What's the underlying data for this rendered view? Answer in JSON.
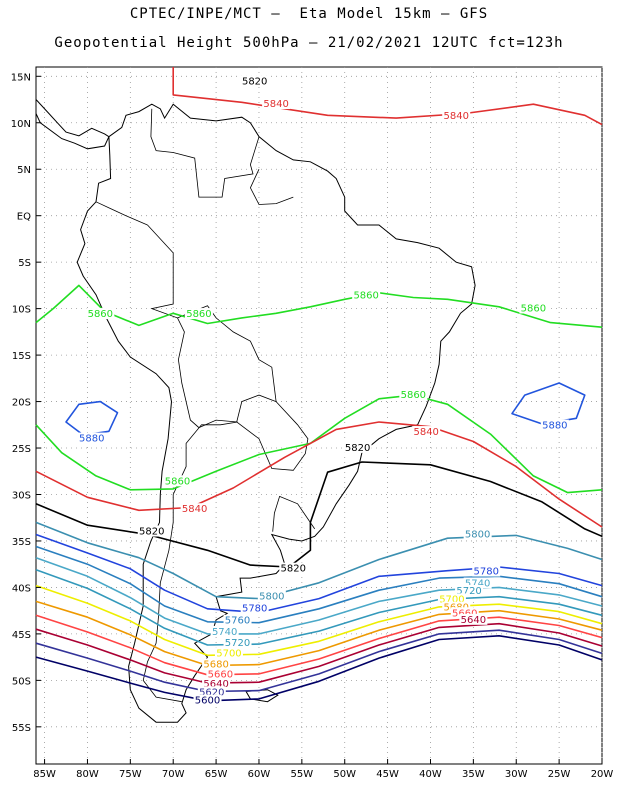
{
  "title_line1": "CPTEC/INPE/MCT –  Eta Model 15km – GFS",
  "title_line2": "Geopotential Height 500hPa – 21/02/2021 12UTC fct=123h",
  "lat_labels": [
    "15N",
    "10N",
    "5N",
    "EQ",
    "5S",
    "10S",
    "15S",
    "20S",
    "25S",
    "30S",
    "35S",
    "40S",
    "45S",
    "50S",
    "55S"
  ],
  "lon_labels": [
    "85W",
    "80W",
    "75W",
    "70W",
    "65W",
    "60W",
    "55W",
    "50W",
    "45W",
    "40W",
    "35W",
    "30W",
    "25W",
    "20W"
  ],
  "map_extent": {
    "lon_min": -86,
    "lon_max": -20,
    "lat_min": -59,
    "lat_max": 16
  },
  "contour_colors": {
    "5820": "#000000",
    "5840": "#e03030",
    "5860": "#22dd22",
    "5880": "#2255dd",
    "5800": "#3b8fb0",
    "5780": "#2244dd",
    "5760": "#2a7fbf",
    "5740": "#4aa8c8",
    "5720": "#3399bb",
    "5700": "#eeee00",
    "5680": "#ee9900",
    "5660": "#ff4444",
    "5640": "#aa0033",
    "5620": "#333399",
    "5600": "#000066"
  },
  "contour_labels": [
    {
      "text": "5820",
      "color": "#000000",
      "lon": -60.5,
      "lat": 14.2
    },
    {
      "text": "5840",
      "color": "#e03030",
      "lon": -37.0,
      "lat": 10.5
    },
    {
      "text": "5840",
      "color": "#e03030",
      "lon": -58.0,
      "lat": 11.8
    },
    {
      "text": "5860",
      "color": "#22dd22",
      "lon": -78.5,
      "lat": -10.8
    },
    {
      "text": "5860",
      "color": "#22dd22",
      "lon": -67.0,
      "lat": -10.8
    },
    {
      "text": "5860",
      "color": "#22dd22",
      "lon": -47.5,
      "lat": -8.8
    },
    {
      "text": "5860",
      "color": "#22dd22",
      "lon": -28.0,
      "lat": -10.2
    },
    {
      "text": "5860",
      "color": "#22dd22",
      "lon": -42.0,
      "lat": -19.5
    },
    {
      "text": "5880",
      "color": "#2255dd",
      "lon": -79.5,
      "lat": -24.2
    },
    {
      "text": "5880",
      "color": "#2255dd",
      "lon": -25.5,
      "lat": -22.8
    },
    {
      "text": "5840",
      "color": "#e03030",
      "lon": -40.5,
      "lat": -23.5
    },
    {
      "text": "5820",
      "color": "#000000",
      "lon": -48.5,
      "lat": -25.2
    },
    {
      "text": "5860",
      "color": "#22dd22",
      "lon": -69.5,
      "lat": -28.8
    },
    {
      "text": "5840",
      "color": "#e03030",
      "lon": -67.5,
      "lat": -31.8
    },
    {
      "text": "5820",
      "color": "#000000",
      "lon": -72.5,
      "lat": -34.2
    },
    {
      "text": "5820",
      "color": "#000000",
      "lon": -56.0,
      "lat": -38.2
    },
    {
      "text": "5800",
      "color": "#3b8fb0",
      "lon": -34.5,
      "lat": -34.5
    },
    {
      "text": "5800",
      "color": "#3b8fb0",
      "lon": -58.5,
      "lat": -41.2
    },
    {
      "text": "5780",
      "color": "#2244dd",
      "lon": -60.5,
      "lat": -42.5
    },
    {
      "text": "5780",
      "color": "#2244dd",
      "lon": -33.5,
      "lat": -38.5
    },
    {
      "text": "5760",
      "color": "#2a7fbf",
      "lon": -62.5,
      "lat": -43.8
    },
    {
      "text": "5740",
      "color": "#4aa8c8",
      "lon": -64.0,
      "lat": -45.0
    },
    {
      "text": "5720",
      "color": "#3399bb",
      "lon": -62.5,
      "lat": -46.2
    },
    {
      "text": "5700",
      "color": "#eeee00",
      "lon": -63.5,
      "lat": -47.3
    },
    {
      "text": "5680",
      "color": "#ee9900",
      "lon": -65.0,
      "lat": -48.5
    },
    {
      "text": "5660",
      "color": "#ff4444",
      "lon": -64.5,
      "lat": -49.6
    },
    {
      "text": "5640",
      "color": "#aa0033",
      "lon": -65.0,
      "lat": -50.6
    },
    {
      "text": "5620",
      "color": "#333399",
      "lon": -65.5,
      "lat": -51.5
    },
    {
      "text": "5600",
      "color": "#000066",
      "lon": -66.0,
      "lat": -52.4
    },
    {
      "text": "5740",
      "color": "#4aa8c8",
      "lon": -34.5,
      "lat": -39.8
    },
    {
      "text": "5720",
      "color": "#3399bb",
      "lon": -35.5,
      "lat": -40.6
    },
    {
      "text": "5700",
      "color": "#eeee00",
      "lon": -37.5,
      "lat": -41.5
    },
    {
      "text": "5680",
      "color": "#ee9900",
      "lon": -37.0,
      "lat": -42.4
    },
    {
      "text": "5660",
      "color": "#ff4444",
      "lon": -36.0,
      "lat": -43.0
    },
    {
      "text": "5640",
      "color": "#aa0033",
      "lon": -35.0,
      "lat": -43.7
    }
  ]
}
